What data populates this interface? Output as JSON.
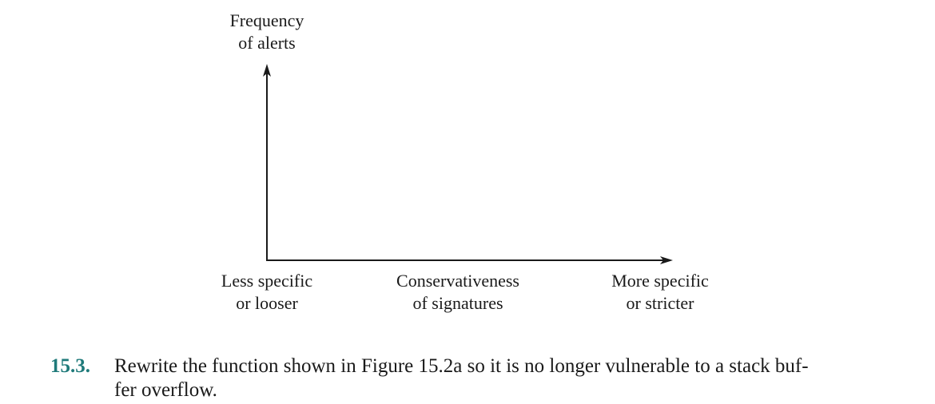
{
  "figure": {
    "y_axis_label": [
      "Frequency",
      "of alerts"
    ],
    "x_axis_label": [
      "Conservativeness",
      "of signatures"
    ],
    "x_left_label": [
      "Less specific",
      "or looser"
    ],
    "x_right_label": [
      "More specific",
      "or stricter"
    ],
    "axis_color": "#1a1a1a"
  },
  "problem": {
    "number": "15.3.",
    "text_lines": [
      "Rewrite the function shown in Figure 15.2a so it is no longer vulnerable to a stack buf-",
      "fer overflow."
    ],
    "number_color": "#1f7a7a"
  }
}
